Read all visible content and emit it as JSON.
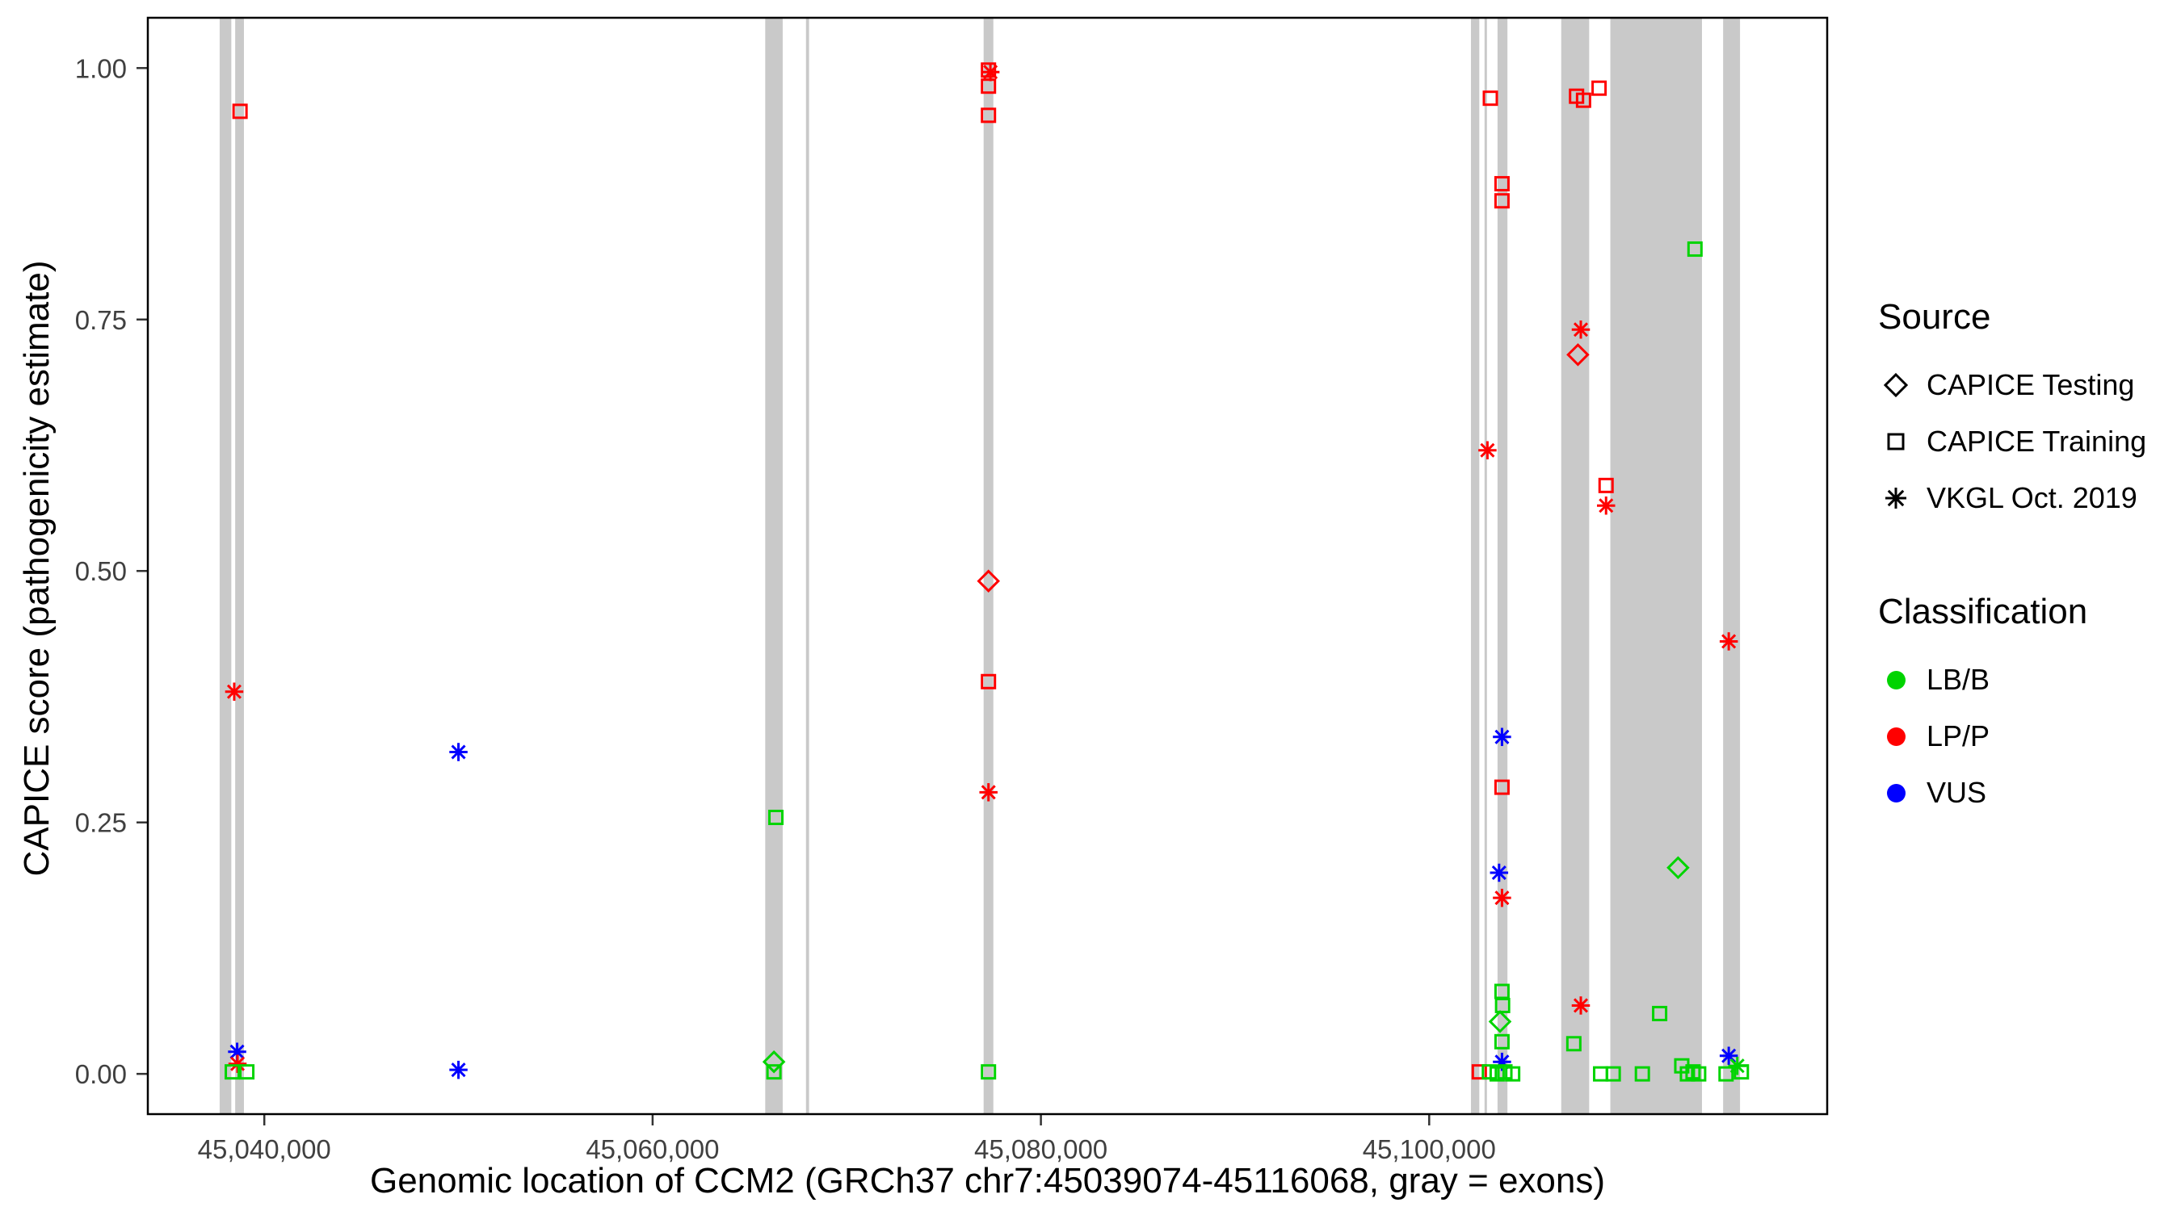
{
  "chart_data": {
    "type": "scatter",
    "title": "",
    "xlabel": "Genomic location of CCM2 (GRCh37 chr7:45039074-45116068, gray = exons)",
    "ylabel": "CAPICE score (pathogenicity estimate)",
    "xlim": [
      45034000,
      45120500
    ],
    "ylim": [
      -0.04,
      1.05
    ],
    "grid": false,
    "legend_position": "right",
    "x_ticks": [
      {
        "value": 45040000,
        "label": "45,040,000"
      },
      {
        "value": 45060000,
        "label": "45,060,000"
      },
      {
        "value": 45080000,
        "label": "45,080,000"
      },
      {
        "value": 45100000,
        "label": "45,100,000"
      }
    ],
    "y_ticks": [
      {
        "value": 0.0,
        "label": "0.00"
      },
      {
        "value": 0.25,
        "label": "0.25"
      },
      {
        "value": 0.5,
        "label": "0.50"
      },
      {
        "value": 0.75,
        "label": "0.75"
      },
      {
        "value": 1.0,
        "label": "1.00"
      }
    ],
    "exon_color": "#c9c9c9",
    "exons": [
      [
        45037700,
        45038300
      ],
      [
        45038500,
        45038950
      ],
      [
        45065800,
        45066700
      ],
      [
        45067900,
        45068060
      ],
      [
        45077050,
        45077550
      ],
      [
        45102150,
        45102580
      ],
      [
        45102850,
        45102950
      ],
      [
        45103520,
        45104030
      ],
      [
        45106800,
        45108240
      ],
      [
        45109330,
        45114050
      ],
      [
        45115140,
        45116010
      ]
    ],
    "colors": {
      "LB/B": "#00d400",
      "LP/P": "#ff0000",
      "VUS": "#0000ff"
    },
    "shapes": {
      "CAPICE Testing": "diamond",
      "CAPICE Training": "square",
      "VKGL Oct. 2019": "asterisk"
    },
    "points": [
      {
        "x": 45038750,
        "y": 0.957,
        "source": "CAPICE Training",
        "classification": "LP/P"
      },
      {
        "x": 45038450,
        "y": 0.38,
        "source": "VKGL Oct. 2019",
        "classification": "LP/P"
      },
      {
        "x": 45038600,
        "y": 0.022,
        "source": "VKGL Oct. 2019",
        "classification": "VUS"
      },
      {
        "x": 45038620,
        "y": 0.01,
        "source": "VKGL Oct. 2019",
        "classification": "LP/P"
      },
      {
        "x": 45038350,
        "y": 0.002,
        "source": "CAPICE Training",
        "classification": "LB/B"
      },
      {
        "x": 45039100,
        "y": 0.002,
        "source": "CAPICE Training",
        "classification": "LB/B"
      },
      {
        "x": 45050000,
        "y": 0.32,
        "source": "VKGL Oct. 2019",
        "classification": "VUS"
      },
      {
        "x": 45050000,
        "y": 0.004,
        "source": "VKGL Oct. 2019",
        "classification": "VUS"
      },
      {
        "x": 45066350,
        "y": 0.255,
        "source": "CAPICE Training",
        "classification": "LB/B"
      },
      {
        "x": 45066250,
        "y": 0.012,
        "source": "CAPICE Testing",
        "classification": "LB/B"
      },
      {
        "x": 45066250,
        "y": 0.002,
        "source": "CAPICE Training",
        "classification": "LB/B"
      },
      {
        "x": 45077300,
        "y": 0.998,
        "source": "CAPICE Training",
        "classification": "LP/P"
      },
      {
        "x": 45077400,
        "y": 0.996,
        "source": "VKGL Oct. 2019",
        "classification": "LP/P"
      },
      {
        "x": 45077300,
        "y": 0.982,
        "source": "CAPICE Training",
        "classification": "LP/P"
      },
      {
        "x": 45077300,
        "y": 0.953,
        "source": "CAPICE Training",
        "classification": "LP/P"
      },
      {
        "x": 45077300,
        "y": 0.49,
        "source": "CAPICE Testing",
        "classification": "LP/P"
      },
      {
        "x": 45077300,
        "y": 0.39,
        "source": "CAPICE Training",
        "classification": "LP/P"
      },
      {
        "x": 45077300,
        "y": 0.28,
        "source": "VKGL Oct. 2019",
        "classification": "LP/P"
      },
      {
        "x": 45077300,
        "y": 0.002,
        "source": "CAPICE Training",
        "classification": "LB/B"
      },
      {
        "x": 45103150,
        "y": 0.97,
        "source": "CAPICE Training",
        "classification": "LP/P"
      },
      {
        "x": 45103750,
        "y": 0.885,
        "source": "CAPICE Training",
        "classification": "LP/P"
      },
      {
        "x": 45103750,
        "y": 0.868,
        "source": "CAPICE Training",
        "classification": "LP/P"
      },
      {
        "x": 45103000,
        "y": 0.62,
        "source": "VKGL Oct. 2019",
        "classification": "LP/P"
      },
      {
        "x": 45103750,
        "y": 0.335,
        "source": "VKGL Oct. 2019",
        "classification": "VUS"
      },
      {
        "x": 45103750,
        "y": 0.285,
        "source": "CAPICE Training",
        "classification": "LP/P"
      },
      {
        "x": 45103600,
        "y": 0.2,
        "source": "VKGL Oct. 2019",
        "classification": "VUS"
      },
      {
        "x": 45103750,
        "y": 0.175,
        "source": "VKGL Oct. 2019",
        "classification": "LP/P"
      },
      {
        "x": 45103750,
        "y": 0.082,
        "source": "CAPICE Training",
        "classification": "LB/B"
      },
      {
        "x": 45103780,
        "y": 0.068,
        "source": "CAPICE Training",
        "classification": "LB/B"
      },
      {
        "x": 45103650,
        "y": 0.052,
        "source": "CAPICE Testing",
        "classification": "LB/B"
      },
      {
        "x": 45103750,
        "y": 0.032,
        "source": "CAPICE Training",
        "classification": "LB/B"
      },
      {
        "x": 45103750,
        "y": 0.012,
        "source": "VKGL Oct. 2019",
        "classification": "VUS"
      },
      {
        "x": 45102580,
        "y": 0.002,
        "source": "CAPICE Training",
        "classification": "LP/P"
      },
      {
        "x": 45103100,
        "y": 0.002,
        "source": "CAPICE Training",
        "classification": "LB/B"
      },
      {
        "x": 45103500,
        "y": 0.0,
        "source": "CAPICE Training",
        "classification": "LB/B"
      },
      {
        "x": 45103900,
        "y": 0.002,
        "source": "CAPICE Training",
        "classification": "LB/B"
      },
      {
        "x": 45104300,
        "y": 0.0,
        "source": "CAPICE Training",
        "classification": "LB/B"
      },
      {
        "x": 45107590,
        "y": 0.972,
        "source": "CAPICE Training",
        "classification": "LP/P"
      },
      {
        "x": 45107950,
        "y": 0.968,
        "source": "CAPICE Training",
        "classification": "LP/P"
      },
      {
        "x": 45108750,
        "y": 0.98,
        "source": "CAPICE Training",
        "classification": "LP/P"
      },
      {
        "x": 45107810,
        "y": 0.74,
        "source": "VKGL Oct. 2019",
        "classification": "LP/P"
      },
      {
        "x": 45107660,
        "y": 0.715,
        "source": "CAPICE Testing",
        "classification": "LP/P"
      },
      {
        "x": 45109110,
        "y": 0.585,
        "source": "CAPICE Training",
        "classification": "LP/P"
      },
      {
        "x": 45109110,
        "y": 0.565,
        "source": "VKGL Oct. 2019",
        "classification": "LP/P"
      },
      {
        "x": 45107810,
        "y": 0.068,
        "source": "VKGL Oct. 2019",
        "classification": "LP/P"
      },
      {
        "x": 45107450,
        "y": 0.03,
        "source": "CAPICE Training",
        "classification": "LB/B"
      },
      {
        "x": 45108830,
        "y": 0.0,
        "source": "CAPICE Training",
        "classification": "LB/B"
      },
      {
        "x": 45109480,
        "y": 0.0,
        "source": "CAPICE Training",
        "classification": "LB/B"
      },
      {
        "x": 45113690,
        "y": 0.82,
        "source": "CAPICE Training",
        "classification": "LB/B"
      },
      {
        "x": 45112820,
        "y": 0.205,
        "source": "CAPICE Testing",
        "classification": "LB/B"
      },
      {
        "x": 45111870,
        "y": 0.06,
        "source": "CAPICE Training",
        "classification": "LB/B"
      },
      {
        "x": 45110980,
        "y": 0.0,
        "source": "CAPICE Training",
        "classification": "LB/B"
      },
      {
        "x": 45113010,
        "y": 0.008,
        "source": "CAPICE Training",
        "classification": "LB/B"
      },
      {
        "x": 45113300,
        "y": 0.0,
        "source": "CAPICE Training",
        "classification": "LB/B"
      },
      {
        "x": 45113590,
        "y": 0.002,
        "source": "CAPICE Training",
        "classification": "LB/B"
      },
      {
        "x": 45113880,
        "y": 0.0,
        "source": "CAPICE Training",
        "classification": "LB/B"
      },
      {
        "x": 45115430,
        "y": 0.43,
        "source": "VKGL Oct. 2019",
        "classification": "LP/P"
      },
      {
        "x": 45115430,
        "y": 0.018,
        "source": "VKGL Oct. 2019",
        "classification": "VUS"
      },
      {
        "x": 45115870,
        "y": 0.008,
        "source": "VKGL Oct. 2019",
        "classification": "LB/B"
      },
      {
        "x": 45115290,
        "y": 0.0,
        "source": "CAPICE Training",
        "classification": "LB/B"
      },
      {
        "x": 45116080,
        "y": 0.002,
        "source": "CAPICE Training",
        "classification": "LB/B"
      }
    ]
  },
  "legend": {
    "source": {
      "title": "Source",
      "items": [
        {
          "label": "CAPICE Testing",
          "shape": "diamond"
        },
        {
          "label": "CAPICE Training",
          "shape": "square"
        },
        {
          "label": "VKGL Oct. 2019",
          "shape": "asterisk"
        }
      ]
    },
    "classification": {
      "title": "Classification",
      "items": [
        {
          "label": "LB/B",
          "color": "#00d400"
        },
        {
          "label": "LP/P",
          "color": "#ff0000"
        },
        {
          "label": "VUS",
          "color": "#0000ff"
        }
      ]
    }
  }
}
